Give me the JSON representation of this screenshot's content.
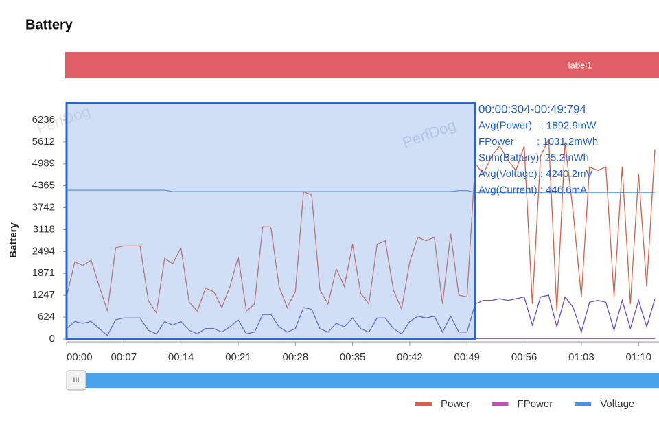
{
  "chart_data": {
    "type": "line",
    "title": "Battery",
    "band_label": "label1",
    "ylabel": "Battery",
    "watermark": "PerfDog",
    "slider_handle": "III",
    "annotation": [
      "00:00:304-00:49:794",
      "Avg(Power)   : 1892.9mW",
      "FPower        : 1031.2mWh",
      "Sum(Battery): 25.2mWh",
      "Avg(Voltage) : 4240.2mV",
      "Avg(Current) : 446.6mA"
    ],
    "x": [
      0,
      1,
      2,
      3,
      4,
      5,
      6,
      7,
      8,
      9,
      10,
      11,
      12,
      13,
      14,
      15,
      16,
      17,
      18,
      19,
      20,
      21,
      22,
      23,
      24,
      25,
      26,
      27,
      28,
      29,
      30,
      31,
      32,
      33,
      34,
      35,
      36,
      37,
      38,
      39,
      40,
      41,
      42,
      43,
      44,
      45,
      46,
      47,
      48,
      49,
      50,
      51,
      52,
      53,
      54,
      55,
      56,
      57,
      58,
      59,
      60,
      61,
      62,
      63,
      64,
      65,
      66,
      67,
      68,
      69,
      70,
      71,
      72
    ],
    "series": [
      {
        "name": "Power",
        "color": "#d4604a",
        "values": [
          1200,
          2200,
          2100,
          2250,
          1500,
          800,
          2600,
          2650,
          2650,
          2650,
          1100,
          750,
          2300,
          2150,
          2600,
          1050,
          800,
          1450,
          1350,
          900,
          1500,
          2350,
          800,
          1000,
          3200,
          3200,
          1500,
          900,
          1350,
          4200,
          4100,
          1400,
          1000,
          2000,
          1500,
          2700,
          1300,
          1000,
          2700,
          2800,
          1400,
          850,
          2200,
          2900,
          2800,
          2900,
          1000,
          3000,
          1250,
          1200,
          5000,
          4700,
          5200,
          5500,
          5100,
          4800,
          5500,
          1000,
          5200,
          5700,
          800,
          5600,
          3600,
          1200,
          4900,
          4800,
          4900,
          1200,
          4900,
          1000,
          4700,
          1500,
          5400
        ]
      },
      {
        "name": "FPower",
        "color": "#c04fb8",
        "values": [
          10,
          10,
          10,
          10,
          10,
          10,
          10,
          10,
          10,
          10,
          10,
          10,
          10,
          10,
          10,
          10,
          10,
          10,
          10,
          10,
          10,
          10,
          10,
          10,
          10,
          10,
          10,
          10,
          10,
          10,
          10,
          10,
          10,
          10,
          10,
          10,
          10,
          10,
          10,
          10,
          10,
          10,
          10,
          10,
          10,
          10,
          10,
          10,
          10,
          10,
          10,
          10,
          10,
          10,
          10,
          10,
          10,
          10,
          10,
          10,
          10,
          10,
          10,
          10,
          10,
          10,
          10,
          10,
          10,
          10,
          10,
          10,
          10
        ]
      },
      {
        "name": "Voltage",
        "color": "#4a8fe0",
        "values": [
          4240,
          4240,
          4240,
          4240,
          4240,
          4240,
          4240,
          4240,
          4240,
          4240,
          4240,
          4240,
          4240,
          4200,
          4200,
          4200,
          4200,
          4200,
          4200,
          4200,
          4200,
          4200,
          4200,
          4200,
          4200,
          4200,
          4200,
          4200,
          4200,
          4200,
          4200,
          4200,
          4200,
          4200,
          4200,
          4200,
          4200,
          4200,
          4200,
          4200,
          4200,
          4200,
          4200,
          4200,
          4200,
          4200,
          4200,
          4200,
          4230,
          4230,
          4180,
          4180,
          4180,
          4180,
          4180,
          4180,
          4180,
          4180,
          4180,
          4180,
          4180,
          4180,
          4180,
          4180,
          4180,
          4180,
          4180,
          4180,
          4180,
          4180,
          4180,
          4180,
          4180
        ]
      },
      {
        "color": "#6a4bd6",
        "values": [
          300,
          500,
          450,
          500,
          300,
          100,
          550,
          600,
          600,
          600,
          250,
          150,
          500,
          400,
          500,
          250,
          150,
          300,
          300,
          200,
          350,
          550,
          150,
          200,
          700,
          700,
          350,
          200,
          300,
          900,
          850,
          300,
          200,
          450,
          350,
          600,
          300,
          200,
          600,
          600,
          300,
          150,
          500,
          650,
          600,
          650,
          200,
          650,
          200,
          200,
          1000,
          1100,
          1100,
          1150,
          1100,
          1150,
          1200,
          400,
          1200,
          1250,
          350,
          1200,
          900,
          200,
          1050,
          1100,
          1050,
          250,
          1100,
          300,
          1100,
          350,
          1150
        ]
      }
    ],
    "xlim": [
      0,
      72.5
    ],
    "ylim": [
      0,
      6763
    ],
    "xticks": [
      {
        "value": 0,
        "label": "00:00"
      },
      {
        "value": 7,
        "label": "00:07"
      },
      {
        "value": 14,
        "label": "00:14"
      },
      {
        "value": 21,
        "label": "00:21"
      },
      {
        "value": 28,
        "label": "00:28"
      },
      {
        "value": 35,
        "label": "00:35"
      },
      {
        "value": 42,
        "label": "00:42"
      },
      {
        "value": 49,
        "label": "00:49"
      },
      {
        "value": 56,
        "label": "00:56"
      },
      {
        "value": 63,
        "label": "01:03"
      },
      {
        "value": 70,
        "label": "01:10"
      }
    ],
    "yticks": [
      0,
      624,
      1247,
      1871,
      2494,
      3118,
      3742,
      4365,
      4989,
      5612,
      6236
    ],
    "legend": "bottom-right"
  }
}
